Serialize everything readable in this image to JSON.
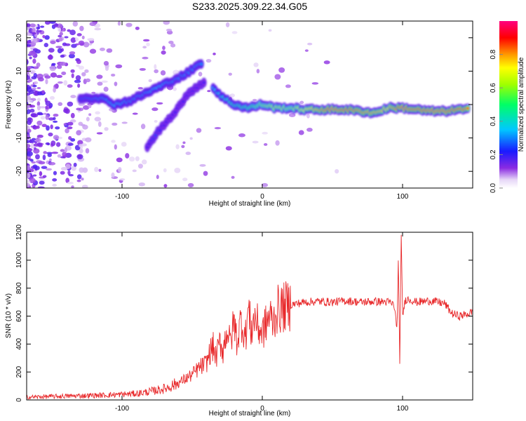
{
  "title": "S233.2025.309.22.34.G05",
  "colors": {
    "snr_line": "#e8292b",
    "axis": "#000000",
    "background": "#ffffff"
  },
  "chart_data": [
    {
      "type": "heatmap",
      "title": "S233.2025.309.22.34.G05",
      "xlabel": "Height of straight line (km)",
      "ylabel": "Frequency (Hz)",
      "xlim": [
        -168,
        150
      ],
      "ylim": [
        -25,
        25
      ],
      "x_ticks": [
        -100,
        0,
        100
      ],
      "x_tick_labels": [
        "-100",
        "0",
        "100"
      ],
      "y_ticks": [
        -20,
        -10,
        0,
        10,
        20
      ],
      "y_tick_labels": [
        "-20",
        "-10",
        "0",
        "10",
        "20"
      ],
      "colorbar": {
        "label": "Normalized spectral amplitude",
        "range": [
          0,
          1
        ],
        "ticks": [
          0.0,
          0.2,
          0.4,
          0.6,
          0.8
        ],
        "tick_labels": [
          "0.0",
          "0.2",
          "0.4",
          "0.6",
          "0.8"
        ]
      },
      "ridges": [
        {
          "name": "upper-branch",
          "points": [
            [
              -130,
              2
            ],
            [
              -115,
              2
            ],
            [
              -105,
              0
            ],
            [
              -95,
              1
            ],
            [
              -85,
              3
            ],
            [
              -75,
              5
            ],
            [
              -65,
              7
            ],
            [
              -55,
              9
            ],
            [
              -48,
              11
            ],
            [
              -42,
              13
            ]
          ],
          "amplitude": [
            0.25,
            0.3,
            0.35,
            0.3,
            0.3,
            0.35,
            0.3,
            0.3,
            0.3,
            0.3
          ]
        },
        {
          "name": "lower-branch",
          "points": [
            [
              -82,
              -13
            ],
            [
              -76,
              -9
            ],
            [
              -70,
              -6
            ],
            [
              -62,
              -2
            ],
            [
              -55,
              2
            ],
            [
              -48,
              5
            ],
            [
              -40,
              7
            ]
          ],
          "amplitude": [
            0.2,
            0.25,
            0.2,
            0.2,
            0.2,
            0.2,
            0.2
          ]
        },
        {
          "name": "main-ridge",
          "points": [
            [
              -35,
              5
            ],
            [
              -28,
              2
            ],
            [
              -20,
              0
            ],
            [
              -10,
              -1
            ],
            [
              0,
              0
            ],
            [
              10,
              -1
            ],
            [
              20,
              -1
            ],
            [
              30,
              -1.5
            ],
            [
              40,
              -1.5
            ],
            [
              50,
              -1.5
            ],
            [
              60,
              -1.5
            ],
            [
              70,
              -2
            ],
            [
              80,
              -2.5
            ],
            [
              90,
              -1
            ],
            [
              100,
              -1
            ],
            [
              110,
              -1.5
            ],
            [
              120,
              -2
            ],
            [
              130,
              -2
            ],
            [
              140,
              -1.5
            ],
            [
              148,
              -1.5
            ]
          ],
          "amplitude": [
            0.35,
            0.4,
            0.45,
            0.5,
            0.6,
            0.65,
            0.6,
            0.7,
            0.8,
            0.95,
            0.9,
            0.85,
            0.8,
            0.75,
            0.95,
            0.9,
            0.95,
            0.95,
            0.9,
            0.85
          ]
        }
      ]
    },
    {
      "type": "line",
      "xlabel": "Height of straight line (km)",
      "ylabel": "SNR (10 * v/v)",
      "xlim": [
        -168,
        150
      ],
      "ylim": [
        0,
        1200
      ],
      "x_ticks": [
        -100,
        0,
        100
      ],
      "x_tick_labels": [
        "-100",
        "0",
        "100"
      ],
      "y_ticks": [
        0,
        200,
        400,
        600,
        800,
        1000,
        1200
      ],
      "y_tick_labels": [
        "0",
        "200",
        "400",
        "600",
        "800",
        "1000",
        "1200"
      ],
      "series": [
        {
          "name": "SNR",
          "x": [
            -168,
            -150,
            -130,
            -110,
            -90,
            -80,
            -70,
            -60,
            -55,
            -50,
            -45,
            -40,
            -37,
            -35,
            -33,
            -30,
            -28,
            -25,
            -23,
            -20,
            -18,
            -15,
            -12,
            -10,
            -8,
            -5,
            -3,
            0,
            3,
            5,
            8,
            10,
            15,
            20,
            25,
            30,
            40,
            50,
            60,
            70,
            80,
            90,
            94,
            96,
            97,
            98,
            99,
            100,
            102,
            105,
            110,
            120,
            125,
            130,
            135,
            140,
            145,
            150
          ],
          "values": [
            20,
            25,
            30,
            35,
            45,
            60,
            80,
            120,
            150,
            180,
            230,
            260,
            350,
            380,
            300,
            420,
            350,
            520,
            400,
            560,
            420,
            580,
            450,
            650,
            500,
            600,
            520,
            480,
            550,
            600,
            560,
            640,
            660,
            680,
            690,
            700,
            705,
            700,
            710,
            700,
            705,
            700,
            680,
            500,
            1000,
            240,
            1200,
            600,
            720,
            720,
            700,
            710,
            700,
            690,
            620,
            600,
            610,
            630
          ]
        }
      ]
    }
  ]
}
